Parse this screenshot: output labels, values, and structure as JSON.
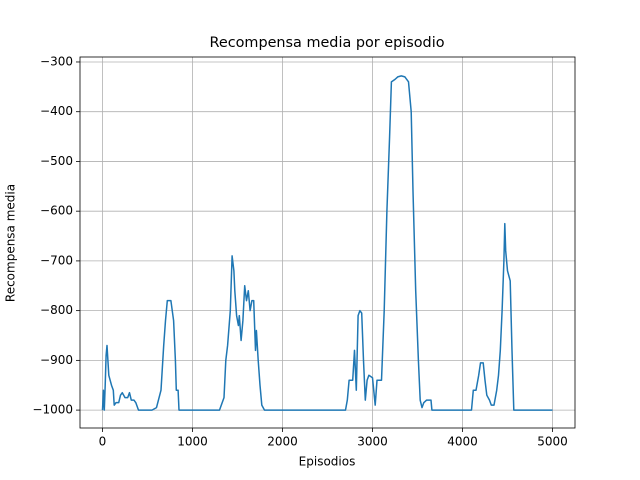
{
  "chart_data": {
    "type": "line",
    "title": "Recompensa media por episodio",
    "xlabel": "Episodios",
    "ylabel": "Recompensa media",
    "xlim": [
      -250,
      5250
    ],
    "ylim": [
      -1036,
      -290
    ],
    "xticks": [
      0,
      1000,
      2000,
      3000,
      4000,
      5000
    ],
    "yticks": [
      {
        "value": -1000,
        "label": "−1000"
      },
      {
        "value": -900,
        "label": "−900"
      },
      {
        "value": -800,
        "label": "−800"
      },
      {
        "value": -700,
        "label": "−700"
      },
      {
        "value": -600,
        "label": "−600"
      },
      {
        "value": -500,
        "label": "−500"
      },
      {
        "value": -400,
        "label": "−400"
      },
      {
        "value": -300,
        "label": "−300"
      }
    ],
    "grid": true,
    "series": [
      {
        "color": "#1f77b4",
        "x": [
          0,
          10,
          20,
          30,
          40,
          50,
          60,
          70,
          100,
          120,
          130,
          150,
          180,
          200,
          220,
          250,
          280,
          300,
          320,
          350,
          370,
          400,
          550,
          600,
          650,
          680,
          700,
          720,
          760,
          790,
          810,
          820,
          840,
          850,
          1300,
          1350,
          1370,
          1390,
          1420,
          1440,
          1460,
          1470,
          1490,
          1510,
          1520,
          1540,
          1560,
          1580,
          1600,
          1620,
          1640,
          1660,
          1680,
          1700,
          1710,
          1730,
          1750,
          1770,
          1800,
          2700,
          2720,
          2740,
          2780,
          2800,
          2820,
          2840,
          2860,
          2880,
          2900,
          2920,
          2940,
          2960,
          3000,
          3030,
          3050,
          3100,
          3130,
          3160,
          3190,
          3210,
          3250,
          3280,
          3320,
          3360,
          3400,
          3430,
          3450,
          3480,
          3510,
          3530,
          3550,
          3570,
          3600,
          3650,
          3660,
          4100,
          4120,
          4150,
          4180,
          4200,
          4230,
          4250,
          4270,
          4300,
          4320,
          4350,
          4380,
          4400,
          4420,
          4440,
          4460,
          4470,
          4480,
          4500,
          4530,
          4550,
          4570,
          5000
        ],
        "values": [
          -1000,
          -960,
          -1000,
          -950,
          -890,
          -870,
          -900,
          -930,
          -950,
          -960,
          -990,
          -985,
          -985,
          -970,
          -965,
          -975,
          -975,
          -965,
          -980,
          -980,
          -985,
          -1000,
          -1000,
          -995,
          -960,
          -870,
          -820,
          -780,
          -780,
          -820,
          -900,
          -960,
          -960,
          -1000,
          -1000,
          -975,
          -900,
          -870,
          -800,
          -690,
          -720,
          -760,
          -810,
          -830,
          -810,
          -860,
          -820,
          -750,
          -780,
          -760,
          -800,
          -780,
          -780,
          -880,
          -840,
          -900,
          -950,
          -990,
          -1000,
          -1000,
          -980,
          -940,
          -940,
          -880,
          -960,
          -810,
          -800,
          -805,
          -900,
          -980,
          -940,
          -930,
          -935,
          -990,
          -940,
          -940,
          -800,
          -600,
          -450,
          -340,
          -335,
          -330,
          -328,
          -330,
          -340,
          -400,
          -560,
          -760,
          -900,
          -980,
          -995,
          -985,
          -980,
          -980,
          -1000,
          -1000,
          -960,
          -960,
          -930,
          -905,
          -905,
          -940,
          -970,
          -980,
          -990,
          -990,
          -960,
          -930,
          -880,
          -800,
          -700,
          -625,
          -680,
          -720,
          -740,
          -880,
          -1000,
          -1000
        ]
      }
    ]
  }
}
